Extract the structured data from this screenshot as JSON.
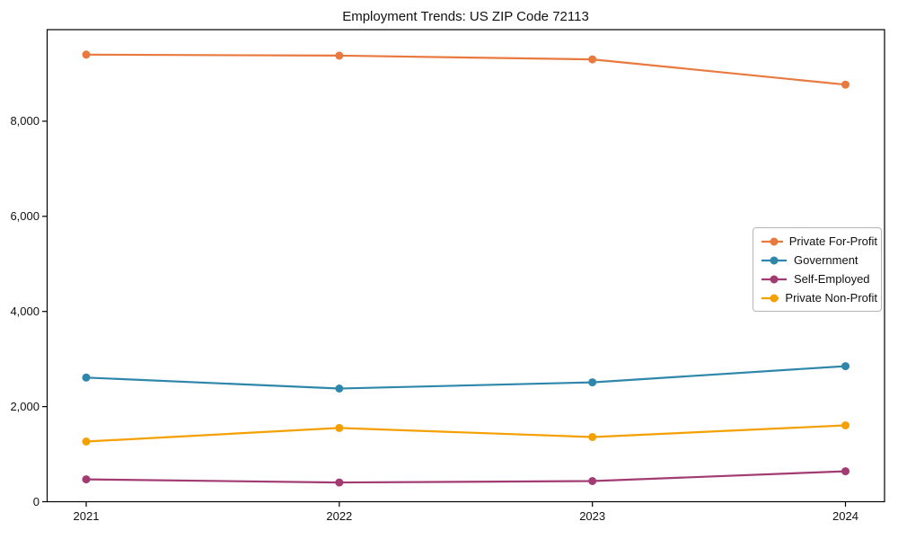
{
  "chart_data": {
    "type": "line",
    "title": "Employment Trends: US ZIP Code 72113",
    "x": [
      2021,
      2022,
      2023,
      2024
    ],
    "series": [
      {
        "name": "Private For-Profit",
        "color": "#E8793F",
        "values": [
          9400,
          9380,
          9300,
          8770
        ]
      },
      {
        "name": "Government",
        "color": "#2E86AB",
        "values": [
          2610,
          2380,
          2510,
          2850
        ]
      },
      {
        "name": "Self-Employed",
        "color": "#A23B72",
        "values": [
          470,
          405,
          435,
          640
        ]
      },
      {
        "name": "Private Non-Profit",
        "color": "#F5A002",
        "values": [
          1265,
          1550,
          1360,
          1605
        ]
      }
    ],
    "xlabel": "",
    "ylabel": "",
    "ylim": [
      0,
      9925
    ],
    "yticks": [
      0,
      2000,
      4000,
      6000,
      8000
    ],
    "ytick_labels": [
      "0",
      "2,000",
      "4,000",
      "6,000",
      "8,000"
    ],
    "xtick_labels": [
      "2021",
      "2022",
      "2023",
      "2024"
    ],
    "grid": false,
    "frame": true,
    "marker": "circle",
    "legend_position": "center-right",
    "text_color": "#111111",
    "axis_color": "#000000"
  }
}
